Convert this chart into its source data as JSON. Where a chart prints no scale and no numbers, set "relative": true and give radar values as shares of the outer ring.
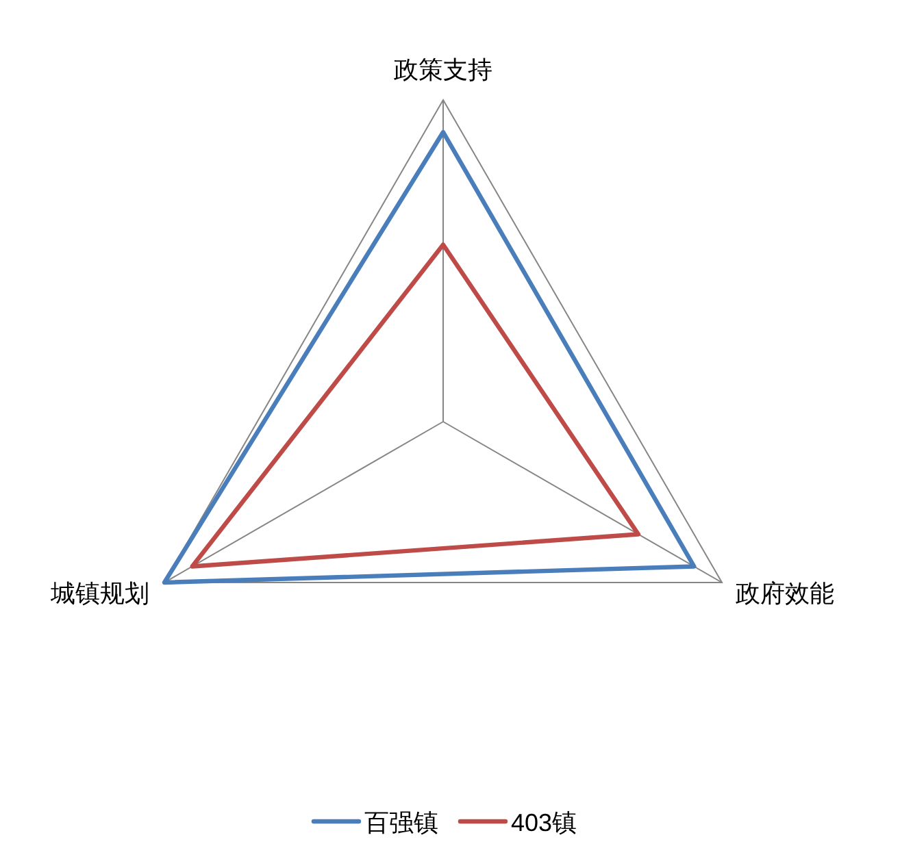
{
  "chart_data": {
    "type": "radar",
    "relative": true,
    "categories": [
      "政策支持",
      "政府效能",
      "城镇规划"
    ],
    "series": [
      {
        "name": "百强镇",
        "color": "#4a7ebb",
        "values": [
          0.9,
          0.9,
          1.0
        ]
      },
      {
        "name": "403镇",
        "color": "#be4b48",
        "values": [
          0.55,
          0.7,
          0.9
        ]
      }
    ],
    "grid": true,
    "legend": "bottom"
  }
}
